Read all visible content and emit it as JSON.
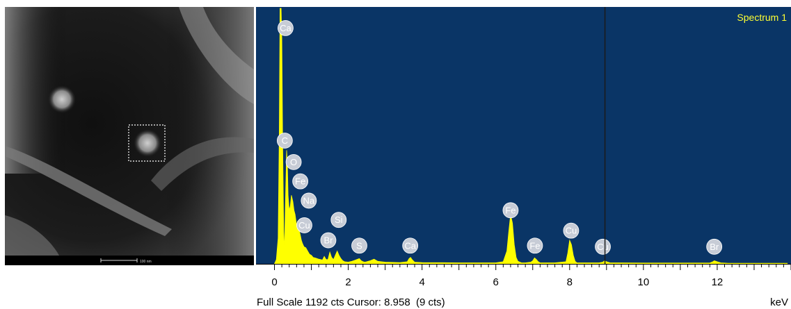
{
  "micrograph": {
    "scale_bar_label": "100 nm"
  },
  "chart_data": {
    "type": "area",
    "title": "Spectrum 1",
    "xlabel": "keV",
    "xlim": [
      -0.5,
      14
    ],
    "ylim": [
      0,
      1192
    ],
    "x_ticks": [
      0,
      2,
      4,
      6,
      8,
      10,
      12
    ],
    "cursor_x": 8.958,
    "series": [
      {
        "x": [
          0.0,
          0.05,
          0.1,
          0.13,
          0.15,
          0.18,
          0.2,
          0.22,
          0.25,
          0.27,
          0.3,
          0.33,
          0.35,
          0.37,
          0.4,
          0.43,
          0.46,
          0.5,
          0.53,
          0.56,
          0.6,
          0.63,
          0.66,
          0.7,
          0.73,
          0.76,
          0.8,
          0.85,
          0.9,
          0.95,
          1.0,
          1.05,
          1.1,
          1.15,
          1.2,
          1.25,
          1.3,
          1.35,
          1.4,
          1.45,
          1.5,
          1.55,
          1.6,
          1.65,
          1.7,
          1.75,
          1.8,
          1.85,
          1.9,
          2.0,
          2.1,
          2.2,
          2.3,
          2.35,
          2.4,
          2.45,
          2.5,
          2.6,
          2.7,
          2.8,
          3.0,
          3.4,
          3.6,
          3.65,
          3.69,
          3.73,
          3.8,
          4.0,
          5.0,
          6.0,
          6.2,
          6.3,
          6.35,
          6.4,
          6.45,
          6.5,
          6.55,
          6.6,
          6.65,
          6.7,
          6.8,
          6.95,
          7.0,
          7.05,
          7.1,
          7.15,
          7.2,
          7.3,
          7.6,
          7.9,
          7.95,
          8.0,
          8.05,
          8.1,
          8.15,
          8.2,
          8.3,
          8.5,
          8.8,
          8.9,
          8.95,
          9.0,
          9.1,
          10.0,
          11.0,
          11.8,
          11.88,
          11.92,
          12.0,
          12.1,
          12.3,
          13.0,
          13.9
        ],
        "y": [
          0,
          20,
          120,
          600,
          1192,
          1192,
          1050,
          600,
          150,
          60,
          300,
          530,
          470,
          320,
          250,
          270,
          320,
          290,
          250,
          230,
          180,
          200,
          165,
          135,
          110,
          95,
          80,
          75,
          60,
          45,
          40,
          30,
          28,
          25,
          22,
          20,
          18,
          35,
          20,
          20,
          55,
          30,
          20,
          40,
          60,
          40,
          25,
          15,
          10,
          8,
          12,
          18,
          25,
          15,
          10,
          8,
          10,
          15,
          22,
          12,
          8,
          6,
          10,
          25,
          30,
          20,
          8,
          6,
          5,
          5,
          10,
          60,
          150,
          230,
          190,
          90,
          30,
          12,
          8,
          5,
          5,
          8,
          15,
          28,
          20,
          10,
          5,
          5,
          5,
          10,
          50,
          110,
          90,
          40,
          12,
          5,
          5,
          5,
          5,
          8,
          15,
          10,
          5,
          4,
          4,
          4,
          10,
          15,
          10,
          5,
          3,
          3,
          3
        ]
      }
    ],
    "element_labels": [
      {
        "text": "Ca",
        "x": 0.3,
        "cts": 1100
      },
      {
        "text": "C",
        "x": 0.28,
        "cts": 575
      },
      {
        "text": "O",
        "x": 0.52,
        "cts": 475
      },
      {
        "text": "Fe",
        "x": 0.7,
        "cts": 385
      },
      {
        "text": "Na",
        "x": 0.93,
        "cts": 295
      },
      {
        "text": "Si",
        "x": 1.74,
        "cts": 205
      },
      {
        "text": "Cu",
        "x": 0.81,
        "cts": 180
      },
      {
        "text": "Br",
        "x": 1.46,
        "cts": 110
      },
      {
        "text": "S",
        "x": 2.3,
        "cts": 85
      },
      {
        "text": "Ca",
        "x": 3.68,
        "cts": 85
      },
      {
        "text": "Fe",
        "x": 6.4,
        "cts": 250
      },
      {
        "text": "Fe",
        "x": 7.06,
        "cts": 85
      },
      {
        "text": "Cu",
        "x": 8.04,
        "cts": 155
      },
      {
        "text": "Cu",
        "x": 8.9,
        "cts": 80
      },
      {
        "text": "Br",
        "x": 11.92,
        "cts": 80
      }
    ]
  },
  "footer": {
    "full_scale_text": "Full Scale 1192 cts Cursor: 8.958  (9 cts)",
    "unit": "keV"
  },
  "colors": {
    "plot_background": "#0a3566",
    "spectrum_fill": "#ffff00",
    "label_circle": "#c7ccd6",
    "cursor_line": "#1a1a1a"
  }
}
